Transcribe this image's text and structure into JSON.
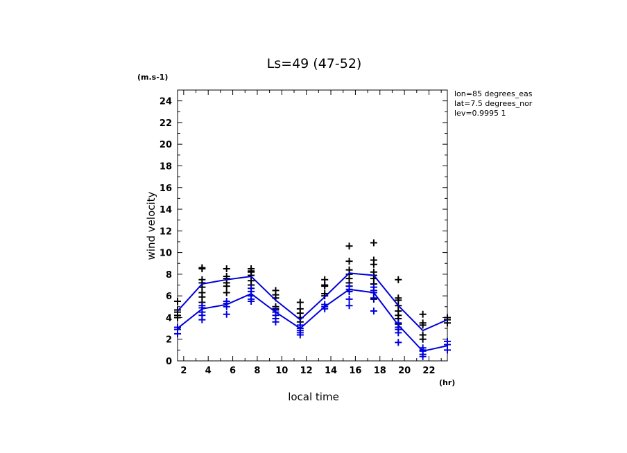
{
  "chart_data": {
    "type": "line",
    "title": "Ls=49 (47-52)",
    "xlabel": "local time",
    "ylabel": "wind velocity",
    "xunit": "(hr)",
    "yunit": "(m.s-1)",
    "xlim": [
      1.5,
      23.5
    ],
    "ylim": [
      0,
      25
    ],
    "xticks": [
      2,
      4,
      6,
      8,
      10,
      12,
      14,
      16,
      18,
      20,
      22
    ],
    "yticks": [
      0,
      2,
      4,
      6,
      8,
      10,
      12,
      14,
      16,
      18,
      20,
      22,
      24
    ],
    "annotations": [
      "lon=85 degrees_eas",
      "lat=7.5 degrees_nor",
      "lev=0.9995 1"
    ],
    "grid": false,
    "series": [
      {
        "color": "#0000dd",
        "x": [
          1.5,
          3.5,
          5.5,
          7.5,
          9.5,
          11.5,
          13.5,
          15.5,
          17.5,
          19.5,
          21.5,
          23.5
        ],
        "y": [
          4.6,
          7.1,
          7.5,
          7.8,
          5.6,
          3.8,
          5.9,
          8.1,
          7.9,
          5.1,
          2.8,
          3.8
        ]
      },
      {
        "color": "#0000dd",
        "x": [
          1.5,
          3.5,
          5.5,
          7.5,
          9.5,
          11.5,
          13.5,
          15.5,
          17.5,
          19.5,
          21.5,
          23.5
        ],
        "y": [
          3.0,
          4.8,
          5.2,
          6.2,
          4.5,
          3.0,
          5.0,
          6.6,
          6.3,
          3.3,
          0.9,
          1.4
        ]
      }
    ],
    "scatter_black": [
      {
        "x": 1.5,
        "y": [
          5.5,
          4.7,
          4.5,
          4.2,
          4.0
        ]
      },
      {
        "x": 3.5,
        "y": [
          8.6,
          8.5,
          7.5,
          7.2,
          6.8,
          6.3,
          5.9,
          5.4
        ]
      },
      {
        "x": 5.5,
        "y": [
          8.5,
          7.8,
          7.6,
          7.2,
          6.9,
          6.3
        ]
      },
      {
        "x": 7.5,
        "y": [
          8.5,
          8.3,
          8.2,
          7.9,
          7.4,
          7.0
        ]
      },
      {
        "x": 9.5,
        "y": [
          6.5,
          6.1,
          5.8,
          5.0,
          4.8
        ]
      },
      {
        "x": 11.5,
        "y": [
          5.4,
          4.8,
          4.4,
          4.0,
          3.6
        ]
      },
      {
        "x": 13.5,
        "y": [
          7.5,
          7.0,
          6.9,
          6.2,
          6.0
        ]
      },
      {
        "x": 15.5,
        "y": [
          10.6,
          9.2,
          8.4,
          8.0,
          7.6,
          7.2,
          6.9,
          6.4
        ]
      },
      {
        "x": 17.5,
        "y": [
          10.9,
          9.3,
          8.9,
          8.2,
          7.9,
          7.6,
          7.1,
          6.3,
          5.7
        ]
      },
      {
        "x": 19.5,
        "y": [
          7.5,
          5.8,
          5.6,
          5.1,
          4.6,
          4.2,
          3.9,
          3.4
        ]
      },
      {
        "x": 21.5,
        "y": [
          4.3,
          3.5,
          3.3,
          2.4,
          2.0
        ]
      },
      {
        "x": 23.5,
        "y": [
          4.0,
          3.8,
          3.5
        ]
      }
    ],
    "scatter_blue": [
      {
        "x": 1.5,
        "y": [
          3.1,
          2.9,
          2.5
        ]
      },
      {
        "x": 3.5,
        "y": [
          5.1,
          4.9,
          4.5,
          4.2,
          3.8
        ]
      },
      {
        "x": 5.5,
        "y": [
          5.5,
          5.3,
          5.0,
          4.3
        ]
      },
      {
        "x": 7.5,
        "y": [
          6.7,
          6.4,
          6.0,
          5.7,
          5.5
        ]
      },
      {
        "x": 9.5,
        "y": [
          4.7,
          4.5,
          4.2,
          3.9,
          3.6
        ]
      },
      {
        "x": 11.5,
        "y": [
          3.3,
          3.0,
          2.8,
          2.6,
          2.4
        ]
      },
      {
        "x": 13.5,
        "y": [
          5.2,
          5.0,
          4.8
        ]
      },
      {
        "x": 15.5,
        "y": [
          6.9,
          6.6,
          6.4,
          5.7,
          5.1
        ]
      },
      {
        "x": 17.5,
        "y": [
          6.8,
          6.5,
          6.3,
          5.8,
          4.6
        ]
      },
      {
        "x": 19.5,
        "y": [
          3.5,
          3.1,
          2.9,
          2.6,
          1.7
        ]
      },
      {
        "x": 21.5,
        "y": [
          1.2,
          1.0,
          0.9,
          0.6,
          0.4
        ]
      },
      {
        "x": 23.5,
        "y": [
          1.8,
          1.5,
          1.0
        ]
      }
    ]
  }
}
